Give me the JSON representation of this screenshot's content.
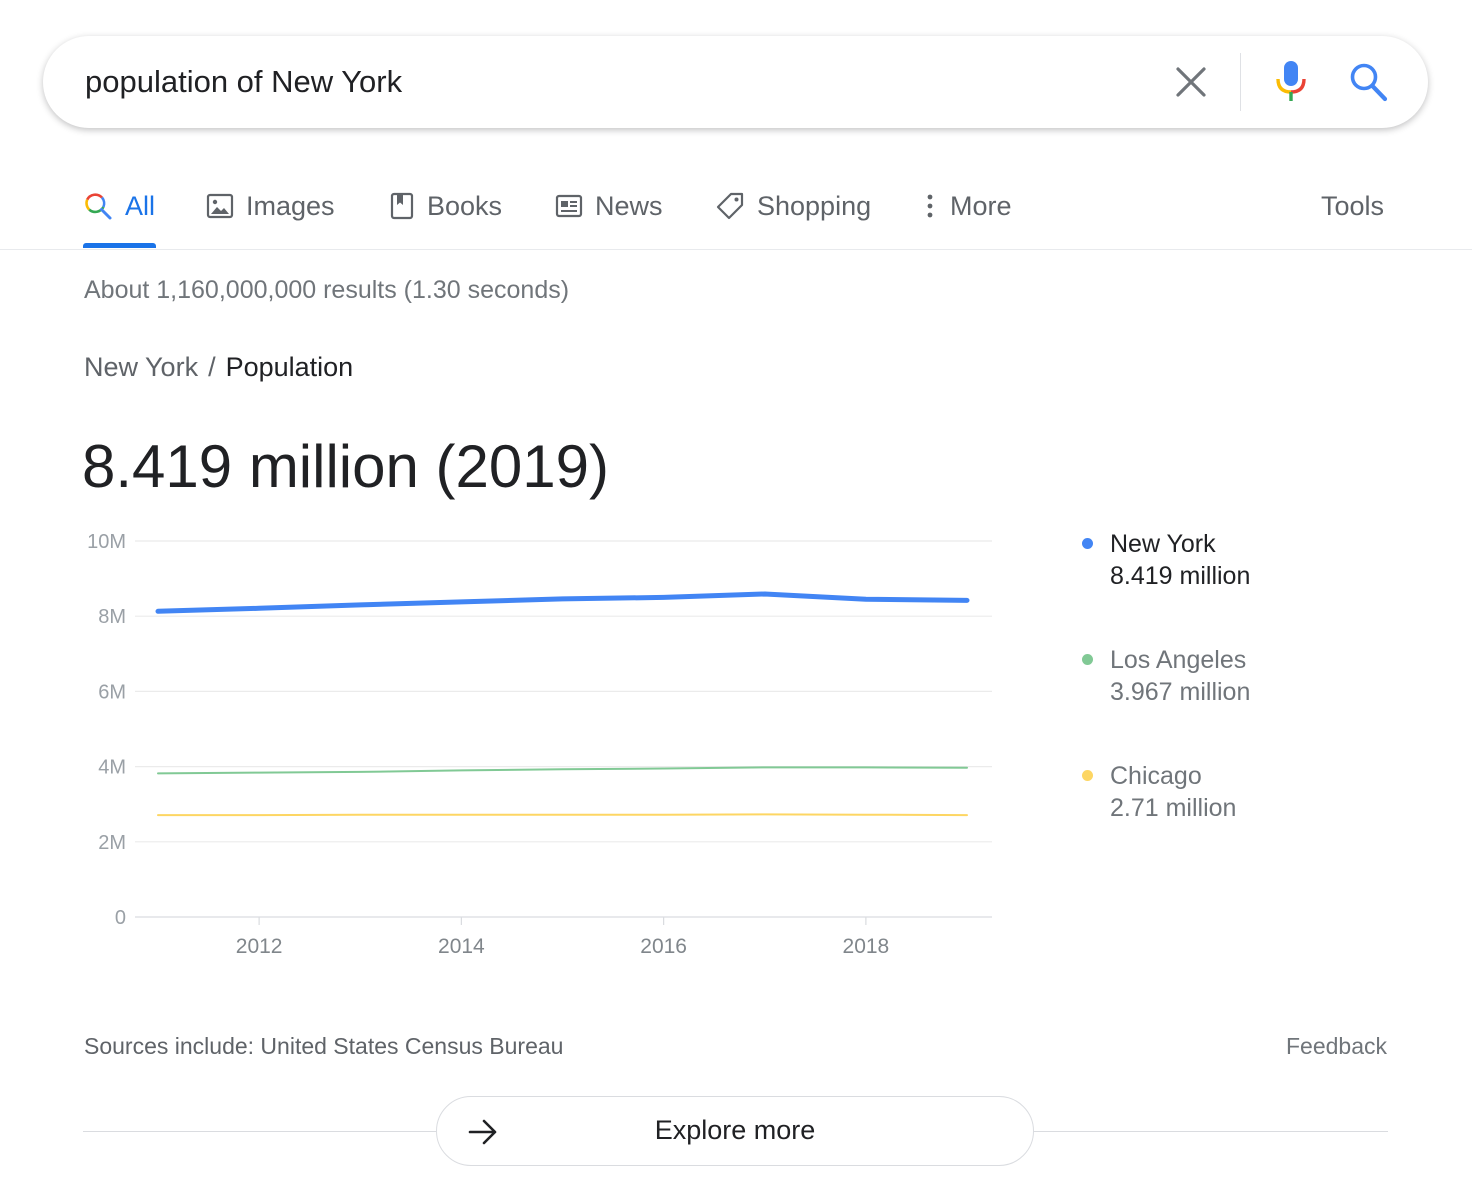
{
  "search": {
    "query": "population of New York",
    "icons": {
      "clear": "close-icon",
      "mic": "microphone-icon",
      "search": "search-icon"
    }
  },
  "tabs": [
    {
      "label": "All",
      "icon": "search-icon",
      "active": true
    },
    {
      "label": "Images",
      "icon": "image-icon"
    },
    {
      "label": "Books",
      "icon": "book-icon"
    },
    {
      "label": "News",
      "icon": "newspaper-icon"
    },
    {
      "label": "Shopping",
      "icon": "tag-icon"
    },
    {
      "label": "More",
      "icon": "more-vertical-icon"
    }
  ],
  "tools_label": "Tools",
  "result_stats": "About 1,160,000,000 results (1.30 seconds)",
  "breadcrumb": {
    "parent": "New York",
    "separator": "/",
    "current": "Population"
  },
  "answer": "8.419 million (2019)",
  "legend": [
    {
      "name": "New York",
      "value": "8.419 million",
      "color": "#4285f4"
    },
    {
      "name": "Los Angeles",
      "value": "3.967 million",
      "color": "#81c995"
    },
    {
      "name": "Chicago",
      "value": "2.71 million",
      "color": "#fdd663"
    }
  ],
  "chart_data": {
    "type": "line",
    "x": [
      2011,
      2012,
      2013,
      2014,
      2015,
      2016,
      2017,
      2018,
      2019
    ],
    "xticks": [
      2012,
      2014,
      2016,
      2018
    ],
    "xtick_labels": [
      "2012",
      "2014",
      "2016",
      "2018"
    ],
    "yticks": [
      0,
      2000000,
      4000000,
      6000000,
      8000000,
      10000000
    ],
    "ytick_labels": [
      "0",
      "2M",
      "4M",
      "6M",
      "8M",
      "10M"
    ],
    "ylim": [
      0,
      10000000
    ],
    "xlim": [
      2011,
      2019
    ],
    "grid": true,
    "legend_placement": "right",
    "series": [
      {
        "name": "New York",
        "color": "#4285f4",
        "values": [
          8130000,
          8210000,
          8300000,
          8380000,
          8460000,
          8500000,
          8590000,
          8450000,
          8419000
        ]
      },
      {
        "name": "Los Angeles",
        "color": "#81c995",
        "values": [
          3820000,
          3840000,
          3860000,
          3900000,
          3930000,
          3950000,
          3980000,
          3980000,
          3967000
        ]
      },
      {
        "name": "Chicago",
        "color": "#fdd663",
        "values": [
          2710000,
          2710000,
          2720000,
          2720000,
          2720000,
          2720000,
          2730000,
          2720000,
          2710000
        ]
      }
    ]
  },
  "sources": "Sources include: United States Census Bureau",
  "feedback": "Feedback",
  "explore": {
    "label": "Explore more",
    "icon": "arrow-right-icon"
  }
}
